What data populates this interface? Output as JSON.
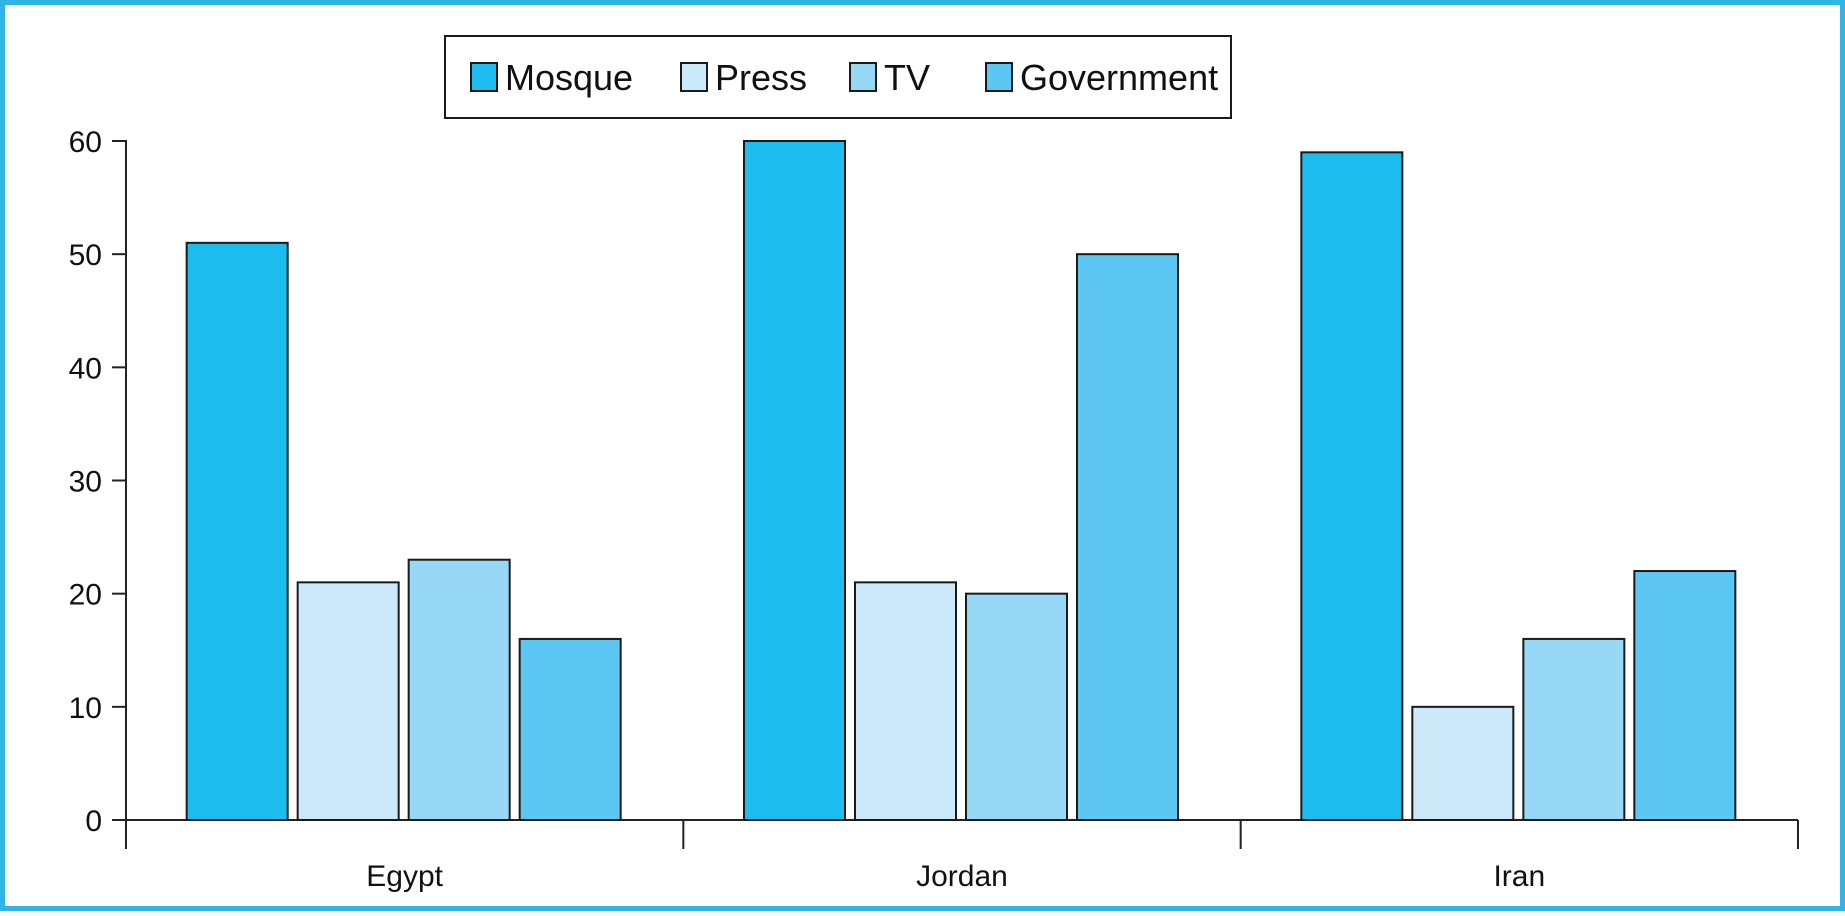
{
  "chart_data": {
    "type": "bar",
    "categories": [
      "Egypt",
      "Jordan",
      "Iran"
    ],
    "series": [
      {
        "name": "Mosque",
        "values": [
          51,
          60,
          59
        ],
        "color": "#1cbcef"
      },
      {
        "name": "Press",
        "values": [
          21,
          21,
          10
        ],
        "color": "#cce9f9"
      },
      {
        "name": "TV",
        "values": [
          23,
          20,
          16
        ],
        "color": "#97d8f6"
      },
      {
        "name": "Government",
        "values": [
          16,
          50,
          22
        ],
        "color": "#5cc7f2"
      }
    ],
    "yticks": [
      "0",
      "10",
      "20",
      "30",
      "40",
      "50",
      "60"
    ],
    "ylim": [
      0,
      60
    ],
    "grid": false,
    "legend": "top-center",
    "frame_color": "#2fb6e6"
  }
}
